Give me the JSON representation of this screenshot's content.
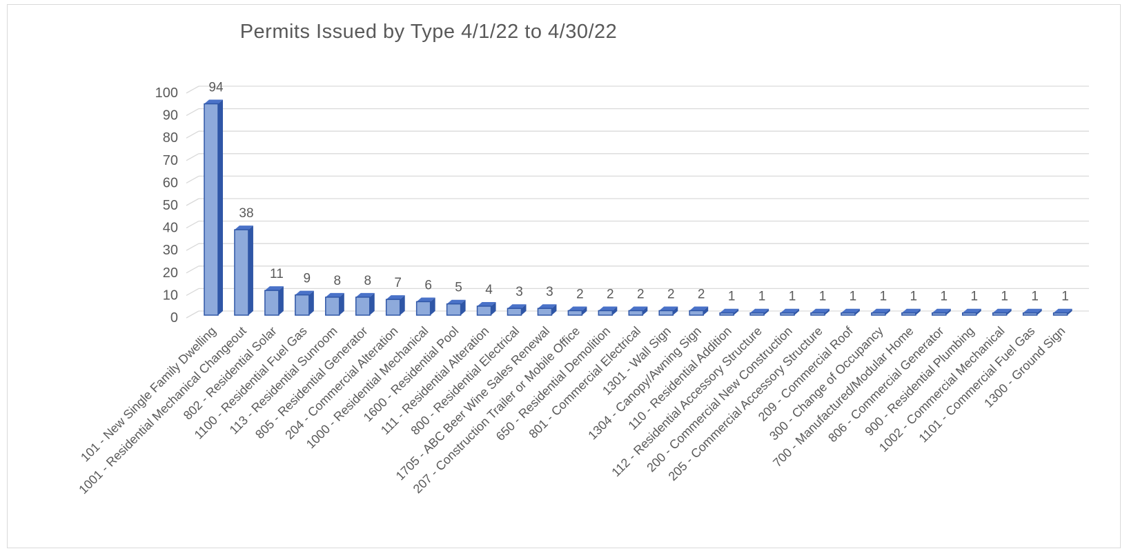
{
  "chart_data": {
    "type": "bar",
    "title": "Permits Issued  by Type 4/1/22 to 4/30/22",
    "xlabel": "",
    "ylabel": "",
    "ylim": [
      0,
      100
    ],
    "yticks": [
      0,
      10,
      20,
      30,
      40,
      50,
      60,
      70,
      80,
      90,
      100
    ],
    "grid": true,
    "legend": "none",
    "bar_color": "#8eaadb",
    "bar_dark": "#2f56a6",
    "bar_top": "#4a72c8",
    "categories": [
      "101 - New Single Family Dwelling",
      "1001 - Residential Mechanical Changeout",
      "802 - Residential Solar",
      "1100 - Residential Fuel Gas",
      "113 - Residential Sunroom",
      "805 - Residential Generator",
      "204 - Commercial Alteration",
      "1000 - Residential Mechanical",
      "1600 - Residential Pool",
      "111 - Residential Alteration",
      "800 - Residential Electrical",
      "1705 - ABC Beer Wine Sales Renewal",
      "207 - Construction Trailer or Mobile Office",
      "650 - Residential Demolition",
      "801 - Commercial Electrical",
      "1301 - Wall Sign",
      "1304 - Canopy/Awning Sign",
      "110 - Residential Addition",
      "112 - Residential Accessory Structure",
      "200 - Commercial New Construction",
      "205 - Commercial Accessory Structure",
      "209 - Commercial Roof",
      "300 - Change of Occupancy",
      "700 - Manufactured/Modular Home",
      "806 - Commercial Generator",
      "900 - Residential Plumbing",
      "1002 - Commercial Mechanical",
      "1101 - Commercial Fuel Gas",
      "1300 - Ground Sign"
    ],
    "values": [
      94,
      38,
      11,
      9,
      8,
      8,
      7,
      6,
      5,
      4,
      3,
      3,
      2,
      2,
      2,
      2,
      2,
      1,
      1,
      1,
      1,
      1,
      1,
      1,
      1,
      1,
      1,
      1,
      1
    ]
  }
}
